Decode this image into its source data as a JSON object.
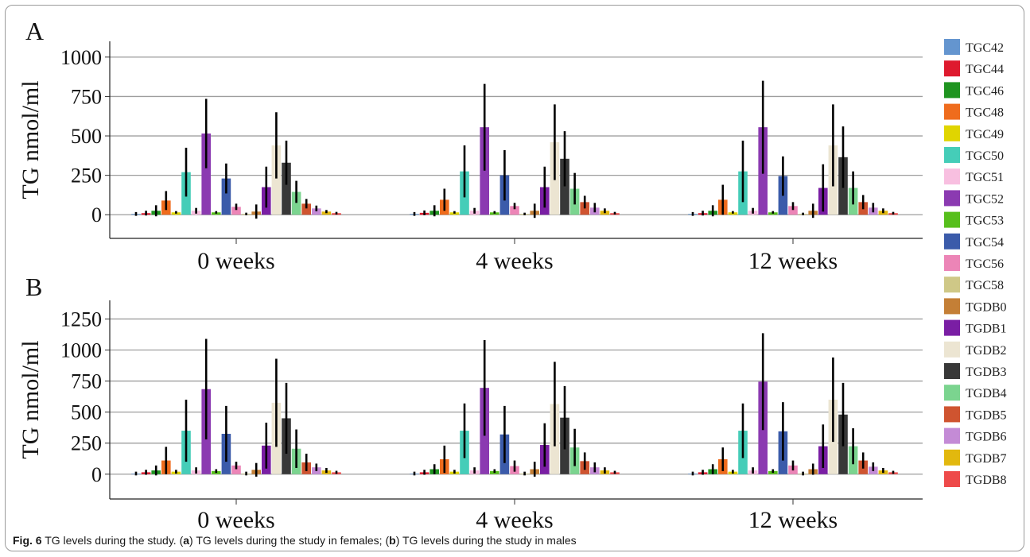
{
  "chart_data": [
    {
      "type": "bar",
      "panel_label": "A",
      "ylabel": "TG nmol/ml",
      "ylim": [
        -150,
        1100
      ],
      "yticks": [
        0,
        250,
        500,
        750,
        1000
      ],
      "grid": true,
      "categories": [
        "0 weeks",
        "4 weeks",
        "12 weeks"
      ],
      "series": [
        {
          "name": "TGC42",
          "color": "#6495cf",
          "values": [
            5,
            5,
            5
          ],
          "errors": [
            12,
            12,
            12
          ]
        },
        {
          "name": "TGC44",
          "color": "#de1a2e",
          "values": [
            10,
            12,
            10
          ],
          "errors": [
            15,
            15,
            15
          ]
        },
        {
          "name": "TGC46",
          "color": "#1f9420",
          "values": [
            25,
            25,
            25
          ],
          "errors": [
            35,
            35,
            35
          ]
        },
        {
          "name": "TGC48",
          "color": "#ef6c1d",
          "values": [
            90,
            95,
            95
          ],
          "errors": [
            60,
            70,
            95
          ]
        },
        {
          "name": "TGC49",
          "color": "#e0d500",
          "values": [
            15,
            15,
            15
          ],
          "errors": [
            8,
            8,
            8
          ]
        },
        {
          "name": "TGC50",
          "color": "#45cdb8",
          "values": [
            270,
            275,
            275
          ],
          "errors": [
            155,
            165,
            195
          ]
        },
        {
          "name": "TGC51",
          "color": "#f8bfe0",
          "values": [
            25,
            25,
            25
          ],
          "errors": [
            18,
            18,
            18
          ]
        },
        {
          "name": "TGC52",
          "color": "#8b3ab1",
          "values": [
            515,
            555,
            555
          ],
          "errors": [
            220,
            275,
            295
          ]
        },
        {
          "name": "TGC53",
          "color": "#57bf1c",
          "values": [
            15,
            15,
            15
          ],
          "errors": [
            8,
            8,
            8
          ]
        },
        {
          "name": "TGC54",
          "color": "#3b5baa",
          "values": [
            230,
            250,
            245
          ],
          "errors": [
            95,
            160,
            125
          ]
        },
        {
          "name": "TGC56",
          "color": "#ec85b7",
          "values": [
            50,
            55,
            55
          ],
          "errors": [
            20,
            20,
            25
          ]
        },
        {
          "name": "TGC58",
          "color": "#cfc887",
          "values": [
            5,
            5,
            5
          ],
          "errors": [
            8,
            8,
            8
          ]
        },
        {
          "name": "TGDB0",
          "color": "#c47f36",
          "values": [
            20,
            25,
            25
          ],
          "errors": [
            45,
            45,
            45
          ]
        },
        {
          "name": "TGDB1",
          "color": "#7a1ea4",
          "values": [
            175,
            175,
            170
          ],
          "errors": [
            130,
            130,
            150
          ]
        },
        {
          "name": "TGDB2",
          "color": "#ece5d2",
          "values": [
            440,
            460,
            440
          ],
          "errors": [
            210,
            240,
            260
          ]
        },
        {
          "name": "TGDB3",
          "color": "#383838",
          "values": [
            330,
            355,
            365
          ],
          "errors": [
            140,
            175,
            195
          ]
        },
        {
          "name": "TGDB4",
          "color": "#7bd48f",
          "values": [
            145,
            165,
            170
          ],
          "errors": [
            70,
            100,
            105
          ]
        },
        {
          "name": "TGDB5",
          "color": "#cf5430",
          "values": [
            70,
            80,
            80
          ],
          "errors": [
            30,
            40,
            45
          ]
        },
        {
          "name": "TGDB6",
          "color": "#c48bd6",
          "values": [
            40,
            45,
            45
          ],
          "errors": [
            18,
            30,
            30
          ]
        },
        {
          "name": "TGDB7",
          "color": "#e2b80e",
          "values": [
            20,
            25,
            25
          ],
          "errors": [
            10,
            15,
            15
          ]
        },
        {
          "name": "TGDB8",
          "color": "#ee4a4a",
          "values": [
            10,
            10,
            10
          ],
          "errors": [
            8,
            8,
            8
          ]
        }
      ]
    },
    {
      "type": "bar",
      "panel_label": "B",
      "ylabel": "TG nmol/ml",
      "ylim": [
        -200,
        1400
      ],
      "yticks": [
        0,
        250,
        500,
        750,
        1000,
        1250
      ],
      "grid": true,
      "categories": [
        "0 weeks",
        "4 weeks",
        "12 weeks"
      ],
      "series": [
        {
          "name": "TGC42",
          "color": "#6495cf",
          "values": [
            5,
            5,
            5
          ],
          "errors": [
            15,
            15,
            15
          ]
        },
        {
          "name": "TGC44",
          "color": "#de1a2e",
          "values": [
            15,
            15,
            15
          ],
          "errors": [
            20,
            20,
            20
          ]
        },
        {
          "name": "TGC46",
          "color": "#1f9420",
          "values": [
            30,
            40,
            40
          ],
          "errors": [
            40,
            40,
            40
          ]
        },
        {
          "name": "TGC48",
          "color": "#ef6c1d",
          "values": [
            110,
            120,
            120
          ],
          "errors": [
            110,
            110,
            95
          ]
        },
        {
          "name": "TGC49",
          "color": "#e0d500",
          "values": [
            20,
            20,
            20
          ],
          "errors": [
            15,
            15,
            15
          ]
        },
        {
          "name": "TGC50",
          "color": "#45cdb8",
          "values": [
            350,
            350,
            350
          ],
          "errors": [
            250,
            220,
            220
          ]
        },
        {
          "name": "TGC51",
          "color": "#f8bfe0",
          "values": [
            30,
            30,
            30
          ],
          "errors": [
            25,
            25,
            25
          ]
        },
        {
          "name": "TGC52",
          "color": "#8b3ab1",
          "values": [
            685,
            695,
            745
          ],
          "errors": [
            405,
            385,
            390
          ]
        },
        {
          "name": "TGC53",
          "color": "#57bf1c",
          "values": [
            25,
            25,
            25
          ],
          "errors": [
            15,
            15,
            15
          ]
        },
        {
          "name": "TGC54",
          "color": "#3b5baa",
          "values": [
            325,
            320,
            345
          ],
          "errors": [
            225,
            230,
            235
          ]
        },
        {
          "name": "TGC56",
          "color": "#ec85b7",
          "values": [
            70,
            65,
            70
          ],
          "errors": [
            30,
            45,
            40
          ]
        },
        {
          "name": "TGC58",
          "color": "#cfc887",
          "values": [
            5,
            5,
            5
          ],
          "errors": [
            15,
            15,
            15
          ]
        },
        {
          "name": "TGDB0",
          "color": "#c47f36",
          "values": [
            35,
            40,
            40
          ],
          "errors": [
            55,
            60,
            45
          ]
        },
        {
          "name": "TGDB1",
          "color": "#7a1ea4",
          "values": [
            230,
            235,
            225
          ],
          "errors": [
            185,
            175,
            175
          ]
        },
        {
          "name": "TGDB2",
          "color": "#ece5d2",
          "values": [
            575,
            565,
            600
          ],
          "errors": [
            355,
            340,
            340
          ]
        },
        {
          "name": "TGDB3",
          "color": "#383838",
          "values": [
            450,
            455,
            480
          ],
          "errors": [
            285,
            255,
            255
          ]
        },
        {
          "name": "TGDB4",
          "color": "#7bd48f",
          "values": [
            205,
            215,
            225
          ],
          "errors": [
            155,
            150,
            145
          ]
        },
        {
          "name": "TGDB5",
          "color": "#cf5430",
          "values": [
            95,
            105,
            110
          ],
          "errors": [
            70,
            70,
            65
          ]
        },
        {
          "name": "TGDB6",
          "color": "#c48bd6",
          "values": [
            55,
            55,
            60
          ],
          "errors": [
            30,
            40,
            35
          ]
        },
        {
          "name": "TGDB7",
          "color": "#e2b80e",
          "values": [
            30,
            30,
            30
          ],
          "errors": [
            20,
            25,
            20
          ]
        },
        {
          "name": "TGDB8",
          "color": "#ee4a4a",
          "values": [
            15,
            15,
            15
          ],
          "errors": [
            12,
            12,
            12
          ]
        }
      ]
    }
  ],
  "caption": {
    "label": "Fig. 6",
    "text_1": "  TG levels during the study. (",
    "a": "a",
    "text_2": ") TG levels during the study in females; (",
    "b": "b",
    "text_3": ") TG levels during the study in males"
  }
}
